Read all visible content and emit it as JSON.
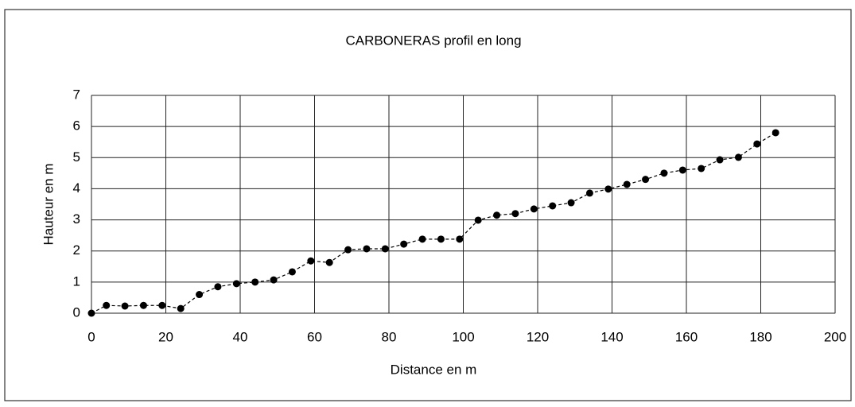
{
  "chart_data": {
    "type": "line",
    "title": "CARBONERAS profil en long",
    "xlabel": "Distance en m",
    "ylabel": "Hauteur en m",
    "x": [
      0,
      4,
      9,
      14,
      19,
      24,
      29,
      34,
      39,
      44,
      49,
      54,
      59,
      64,
      69,
      74,
      79,
      84,
      89,
      94,
      99,
      104,
      109,
      114,
      119,
      124,
      129,
      134,
      139,
      144,
      149,
      154,
      159,
      164,
      169,
      174,
      179,
      184
    ],
    "series": [
      {
        "color": "#000000",
        "values": [
          0,
          0.25,
          0.23,
          0.25,
          0.25,
          0.15,
          0.6,
          0.85,
          0.95,
          1.0,
          1.07,
          1.33,
          1.68,
          1.63,
          2.04,
          2.07,
          2.07,
          2.22,
          2.38,
          2.38,
          2.38,
          2.99,
          3.15,
          3.2,
          3.35,
          3.45,
          3.55,
          3.86,
          3.99,
          4.14,
          4.3,
          4.5,
          4.6,
          4.65,
          4.93,
          5.01,
          5.44,
          5.8
        ]
      }
    ],
    "xlim": [
      0,
      200
    ],
    "xticks": [
      0,
      20,
      40,
      60,
      80,
      100,
      120,
      140,
      160,
      180,
      200
    ],
    "ylim": [
      0,
      7
    ],
    "yticks": [
      0,
      1,
      2,
      3,
      4,
      5,
      6,
      7
    ],
    "grid": true
  }
}
